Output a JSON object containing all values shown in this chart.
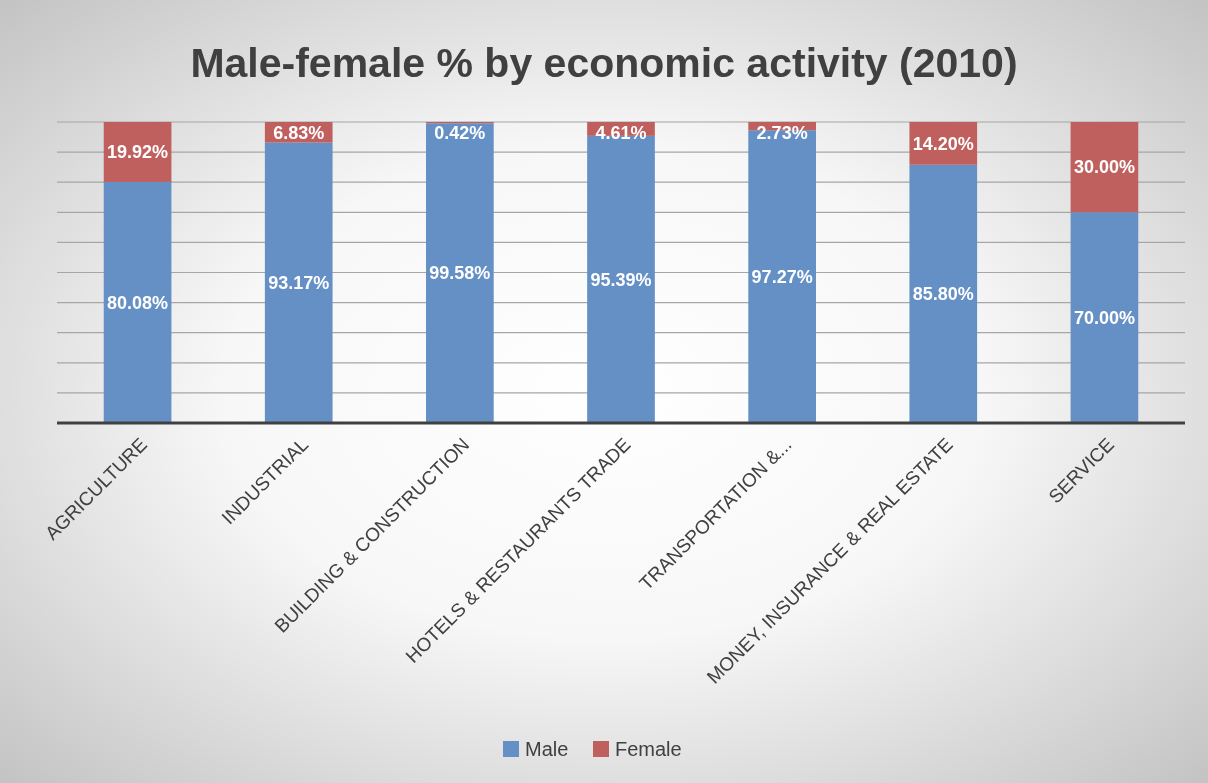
{
  "chart_data": {
    "type": "bar",
    "title": "Male-female % by economic activity (2010)",
    "categories": [
      "AGRICULTURE",
      "INDUSTRIAL",
      "BUILDING & CONSTRUCTION",
      "HOTELS & RESTAURANTS TRADE",
      "TRANSPORTATION &...",
      "MONEY, INSURANCE & REAL ESTATE",
      "SERVICE"
    ],
    "series": [
      {
        "name": "Male",
        "color": "#6590c6",
        "values": [
          80.08,
          93.17,
          99.58,
          95.39,
          97.27,
          85.8,
          70.0
        ],
        "value_labels": [
          "80.08%",
          "93.17%",
          "99.58%",
          "95.39%",
          "97.27%",
          "85.80%",
          "70.00%"
        ]
      },
      {
        "name": "Female",
        "color": "#c0605e",
        "values": [
          19.92,
          6.83,
          0.42,
          4.61,
          2.73,
          14.2,
          30.0
        ],
        "value_labels": [
          "19.92%",
          "6.83%",
          "0.42%",
          "4.61%",
          "2.73%",
          "14.20%",
          "30.00%"
        ]
      }
    ],
    "stacked": true,
    "ylim": [
      0,
      100
    ],
    "yticks": [
      {
        "value": 0,
        "label": null
      },
      {
        "value": 10,
        "label": null
      },
      {
        "value": 20,
        "label": null
      },
      {
        "value": 30,
        "label": null
      },
      {
        "value": 40,
        "label": null
      },
      {
        "value": 50,
        "label": null
      },
      {
        "value": 60,
        "label": null
      },
      {
        "value": 70,
        "label": null
      },
      {
        "value": 80,
        "label": null
      },
      {
        "value": 90,
        "label": null
      },
      {
        "value": 100,
        "label": null
      }
    ],
    "grid": "y",
    "tick_labels": "x",
    "legend": "bottom"
  }
}
